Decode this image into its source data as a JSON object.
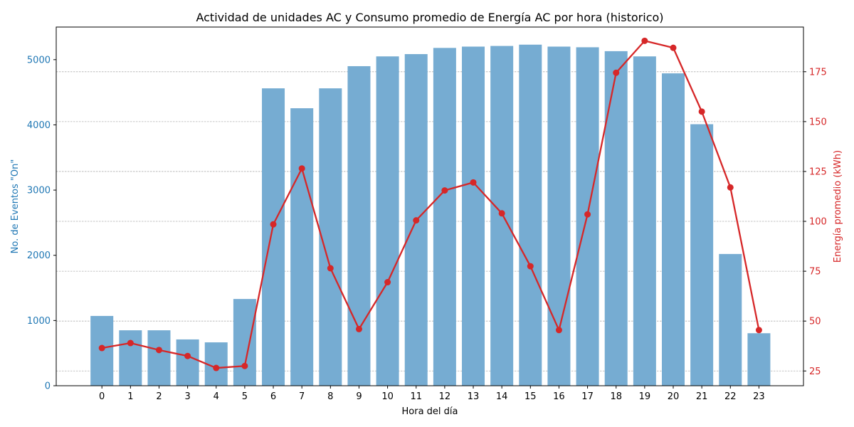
{
  "chart_data": {
    "type": "bar",
    "title": "Actividad de unidades AC y Consumo promedio de Energía AC por hora (historico)",
    "xlabel": "Hora del día",
    "ylabel": "No. de Eventos \"On\"",
    "y2label": "Energía promedio (kWh)",
    "categories": [
      "0",
      "1",
      "2",
      "3",
      "4",
      "5",
      "6",
      "7",
      "8",
      "9",
      "10",
      "11",
      "12",
      "13",
      "14",
      "15",
      "16",
      "17",
      "18",
      "19",
      "20",
      "21",
      "22",
      "23"
    ],
    "series": [
      {
        "axis": "left",
        "kind": "bar",
        "color": "#76acd2",
        "values": [
          1070,
          850,
          850,
          710,
          665,
          1330,
          4560,
          4255,
          4560,
          4900,
          5050,
          5085,
          5180,
          5200,
          5210,
          5230,
          5200,
          5190,
          5130,
          5050,
          4790,
          4010,
          2020,
          805
        ]
      },
      {
        "axis": "right",
        "kind": "line",
        "color": "#d62728",
        "values": [
          36.5,
          39,
          35.5,
          32.5,
          26.5,
          27.5,
          98.5,
          126.5,
          76.5,
          46,
          69.5,
          100.5,
          115.5,
          119.5,
          104,
          77.5,
          45.5,
          103.5,
          174.5,
          190.5,
          187,
          155,
          117,
          45.5
        ]
      }
    ],
    "ylim": [
      0,
      5500
    ],
    "y2lim": [
      17.6,
      197.4
    ],
    "yticks": [
      0,
      1000,
      2000,
      3000,
      4000,
      5000
    ],
    "y2ticks": [
      25,
      50,
      75,
      100,
      125,
      150,
      175
    ],
    "left_axis_color": "#1f77b4",
    "right_axis_color": "#d62728",
    "grid": "horizontal-dashed (right axis)"
  }
}
